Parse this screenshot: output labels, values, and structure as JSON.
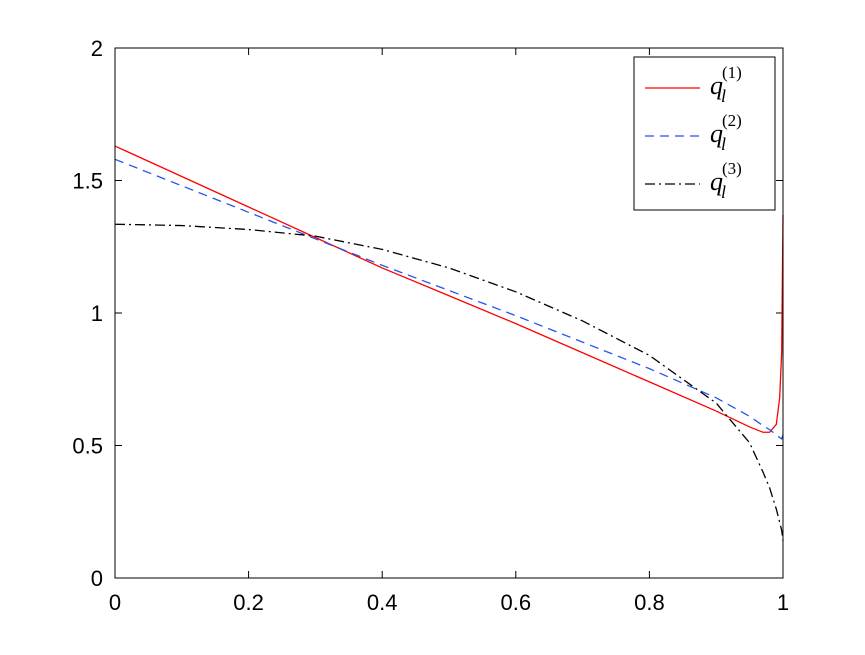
{
  "chart_data": {
    "type": "line",
    "x": [
      0,
      0.1,
      0.2,
      0.3,
      0.4,
      0.5,
      0.6,
      0.7,
      0.8,
      0.9,
      0.95,
      0.97,
      0.98,
      0.99,
      0.995,
      0.998,
      1
    ],
    "series": [
      {
        "name": "q",
        "subscript": "l",
        "superscript": "(1)",
        "color": "#ff0000",
        "dash": "none",
        "values": [
          1.63,
          1.515,
          1.4,
          1.285,
          1.17,
          1.065,
          0.96,
          0.85,
          0.74,
          0.63,
          0.57,
          0.55,
          0.55,
          0.58,
          0.68,
          0.85,
          1.37
        ]
      },
      {
        "name": "q",
        "subscript": "l",
        "superscript": "(2)",
        "color": "#2255ee",
        "dash": "9 6",
        "values": [
          1.58,
          1.48,
          1.38,
          1.28,
          1.18,
          1.085,
          0.99,
          0.89,
          0.79,
          0.68,
          0.61,
          0.575,
          0.56,
          0.54,
          0.53,
          0.525,
          0.54
        ]
      },
      {
        "name": "q",
        "subscript": "l",
        "superscript": "(3)",
        "color": "#000000",
        "dash": "10 4 2 4",
        "values": [
          1.335,
          1.33,
          1.315,
          1.29,
          1.24,
          1.17,
          1.08,
          0.97,
          0.84,
          0.66,
          0.51,
          0.4,
          0.34,
          0.26,
          0.21,
          0.18,
          0.14
        ]
      }
    ],
    "xlim": [
      0,
      1
    ],
    "xticks": [
      0,
      0.2,
      0.4,
      0.6,
      0.8,
      1
    ],
    "ylim": [
      0,
      2
    ],
    "yticks": [
      0,
      0.5,
      1,
      1.5,
      2
    ],
    "grid": false,
    "legend": "top-right"
  }
}
